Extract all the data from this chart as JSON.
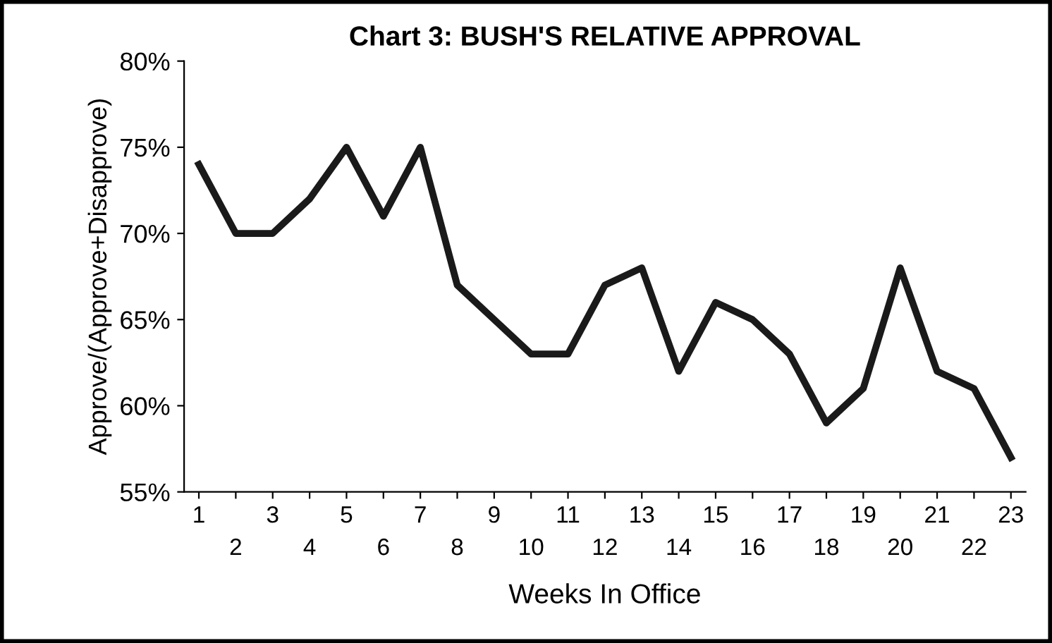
{
  "chart_data": {
    "type": "line",
    "title": "Chart 3: BUSH'S RELATIVE APPROVAL",
    "xlabel": "Weeks In Office",
    "ylabel": "Approve/(Approve+Disapprove)",
    "categories": [
      "1",
      "2",
      "3",
      "4",
      "5",
      "6",
      "7",
      "8",
      "9",
      "10",
      "11",
      "12",
      "13",
      "14",
      "15",
      "16",
      "17",
      "18",
      "19",
      "20",
      "21",
      "22",
      "23"
    ],
    "series": [
      {
        "color": "#1a1a1a",
        "values": [
          74,
          70,
          70,
          72,
          75,
          71,
          75,
          67,
          65,
          63,
          63,
          67,
          68,
          62,
          66,
          65,
          63,
          59,
          61,
          68,
          62,
          61,
          57
        ]
      }
    ],
    "ylim": [
      55,
      80
    ],
    "yticks": [
      {
        "value": 55,
        "label": "55%"
      },
      {
        "value": 60,
        "label": "60%"
      },
      {
        "value": 65,
        "label": "65%"
      },
      {
        "value": 70,
        "label": "70%"
      },
      {
        "value": 75,
        "label": "75%"
      },
      {
        "value": 80,
        "label": "80%"
      }
    ],
    "grid": false,
    "legend": false,
    "marker": "none",
    "line_style": "solid"
  }
}
